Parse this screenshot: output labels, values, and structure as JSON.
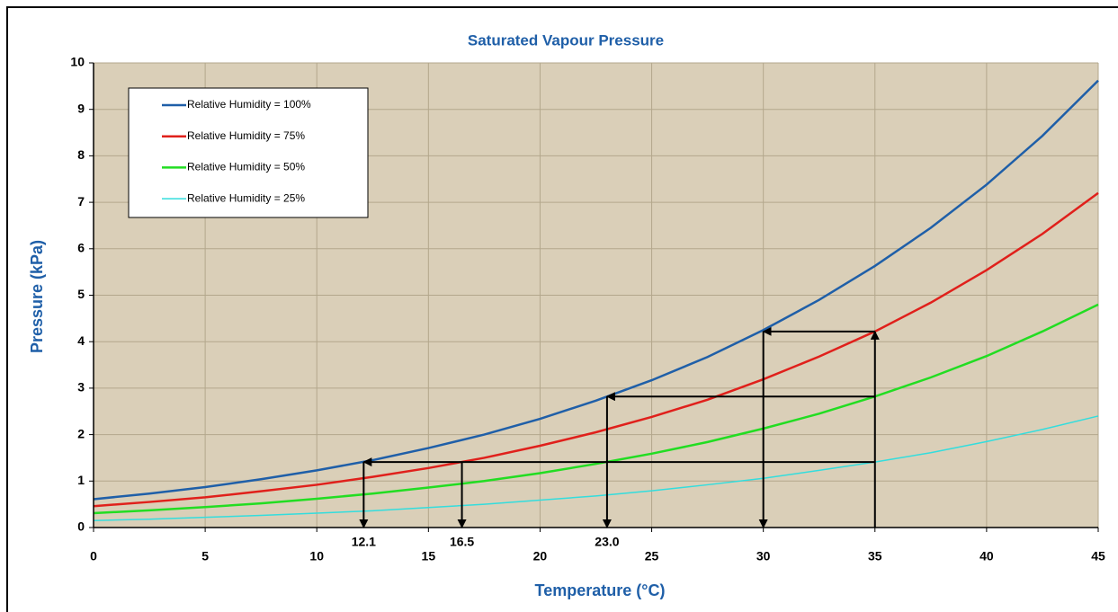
{
  "chart_data": {
    "type": "line",
    "title": "Saturated Vapour Pressure",
    "x_label": "Temperature (°C)",
    "y_label": "Pressure (kPa)",
    "x": [
      0,
      2.5,
      5,
      7.5,
      10,
      12.5,
      15,
      17.5,
      20,
      22.5,
      25,
      27.5,
      30,
      32.5,
      35,
      37.5,
      40,
      42.5,
      45
    ],
    "series": [
      {
        "name": "Relative Humidity = 100%",
        "color": "#1f5fa8",
        "values": [
          0.61,
          0.73,
          0.87,
          1.04,
          1.23,
          1.45,
          1.71,
          2.0,
          2.34,
          2.73,
          3.17,
          3.67,
          4.25,
          4.9,
          5.63,
          6.45,
          7.38,
          8.43,
          9.62
        ]
      },
      {
        "name": "Relative Humidity = 75%",
        "color": "#e0201b",
        "values": [
          0.46,
          0.55,
          0.65,
          0.78,
          0.92,
          1.09,
          1.28,
          1.5,
          1.76,
          2.05,
          2.38,
          2.75,
          3.19,
          3.68,
          4.22,
          4.84,
          5.54,
          6.32,
          7.2
        ]
      },
      {
        "name": "Relative Humidity = 50%",
        "color": "#22dd22",
        "values": [
          0.31,
          0.37,
          0.44,
          0.52,
          0.62,
          0.73,
          0.86,
          1.0,
          1.17,
          1.37,
          1.59,
          1.84,
          2.13,
          2.45,
          2.82,
          3.23,
          3.69,
          4.22,
          4.8
        ]
      },
      {
        "name": "Relative Humidity = 25%",
        "color": "#33dddd",
        "values": [
          0.15,
          0.18,
          0.22,
          0.26,
          0.31,
          0.36,
          0.43,
          0.5,
          0.59,
          0.68,
          0.79,
          0.92,
          1.06,
          1.23,
          1.41,
          1.61,
          1.85,
          2.11,
          2.4
        ]
      }
    ],
    "xlim": [
      0,
      45
    ],
    "xticks": [
      0,
      5,
      10,
      15,
      20,
      25,
      30,
      35,
      40,
      45
    ],
    "ylim": [
      0,
      10
    ],
    "yticks": [
      0,
      1,
      2,
      3,
      4,
      5,
      6,
      7,
      8,
      9,
      10
    ],
    "grid": true,
    "legend": "upper left",
    "annotations": [
      12.1,
      16.5,
      {
        "value": 23,
        "label": "23.0"
      }
    ],
    "arrows": [
      {
        "from": [
          35,
          0
        ],
        "to": [
          35,
          4.22
        ]
      },
      {
        "from": [
          35,
          4.22
        ],
        "to": [
          30,
          4.22
        ]
      },
      {
        "from": [
          30,
          4.22
        ],
        "to": [
          30,
          0
        ]
      },
      {
        "from": [
          35,
          2.82
        ],
        "to": [
          23,
          2.82
        ]
      },
      {
        "from": [
          23,
          2.82
        ],
        "to": [
          23,
          0
        ]
      },
      {
        "from": [
          35,
          1.41
        ],
        "to": [
          12.1,
          1.41
        ]
      },
      {
        "from": [
          12.1,
          1.41
        ],
        "to": [
          12.1,
          0
        ]
      },
      {
        "from": [
          16.5,
          1.41
        ],
        "to": [
          16.5,
          0
        ]
      }
    ]
  }
}
